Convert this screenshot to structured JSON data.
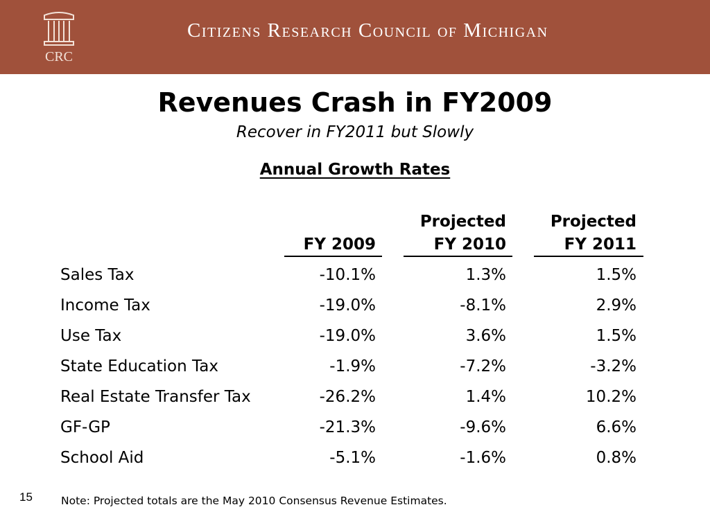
{
  "header": {
    "org_name": "Citizens Research Council of Michigan",
    "logo_text": "CRC",
    "logo_icon": "column-building-icon",
    "banner_color": "#a0513b"
  },
  "slide": {
    "title": "Revenues Crash in FY2009",
    "subtitle": "Recover in FY2011 but Slowly",
    "section_title": "Annual Growth Rates"
  },
  "table": {
    "columns": [
      {
        "line1": "",
        "line2": "FY 2009"
      },
      {
        "line1": "Projected",
        "line2": "FY 2010"
      },
      {
        "line1": "Projected",
        "line2": "FY 2011"
      }
    ],
    "rows": [
      {
        "label": "Sales Tax",
        "values": [
          "-10.1%",
          "1.3%",
          "1.5%"
        ]
      },
      {
        "label": "Income Tax",
        "values": [
          "-19.0%",
          "-8.1%",
          "2.9%"
        ]
      },
      {
        "label": "Use Tax",
        "values": [
          "-19.0%",
          "3.6%",
          "1.5%"
        ]
      },
      {
        "label": "State Education Tax",
        "values": [
          "-1.9%",
          "-7.2%",
          "-3.2%"
        ]
      },
      {
        "label": "Real Estate Transfer Tax",
        "values": [
          "-26.2%",
          "1.4%",
          "10.2%"
        ]
      },
      {
        "label": "GF-GP",
        "values": [
          "-21.3%",
          "-9.6%",
          "6.6%"
        ]
      },
      {
        "label": "School Aid",
        "values": [
          "-5.1%",
          "-1.6%",
          "0.8%"
        ]
      }
    ]
  },
  "footer": {
    "page_number": "15",
    "note": "Note: Projected totals are the May 2010 Consensus Revenue Estimates."
  }
}
